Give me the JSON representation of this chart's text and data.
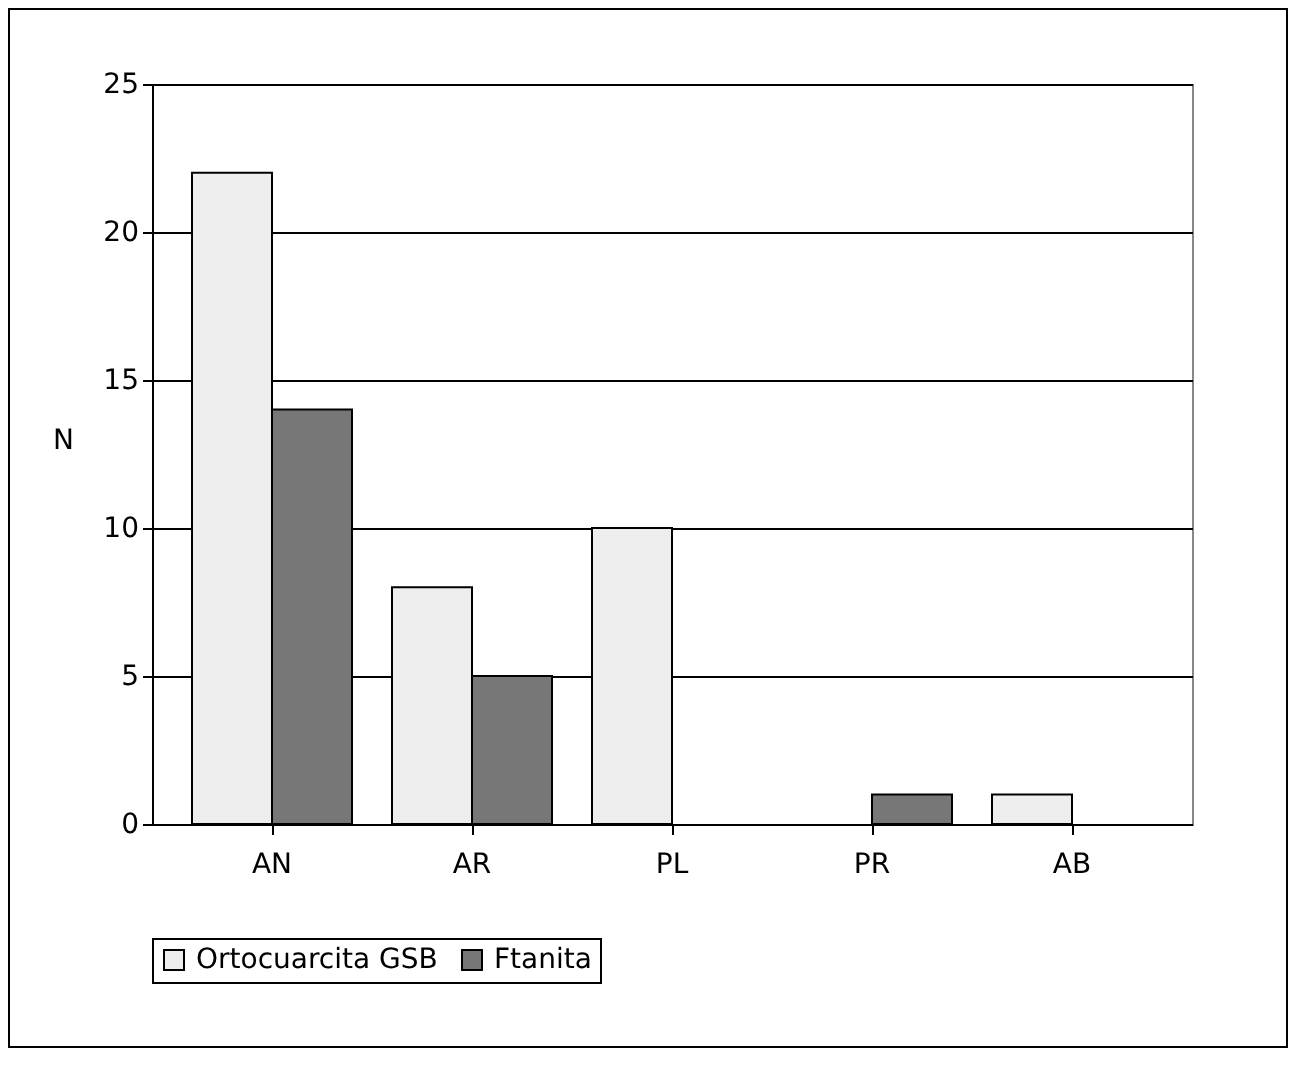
{
  "chart_data": {
    "type": "bar",
    "ylabel": "N",
    "categories": [
      "AN",
      "AR",
      "PL",
      "PR",
      "AB"
    ],
    "series": [
      {
        "name": "Ortocuarcita GSB",
        "color": "#eeeeee",
        "values": [
          22,
          8,
          10,
          null,
          1
        ]
      },
      {
        "name": "Ftanita",
        "color": "#777777",
        "values": [
          14,
          5,
          null,
          1,
          null
        ]
      }
    ],
    "ylim": [
      0,
      25
    ],
    "yticks": [
      0,
      5,
      10,
      15,
      20,
      25
    ],
    "grid": "y",
    "legend": "bottom"
  }
}
